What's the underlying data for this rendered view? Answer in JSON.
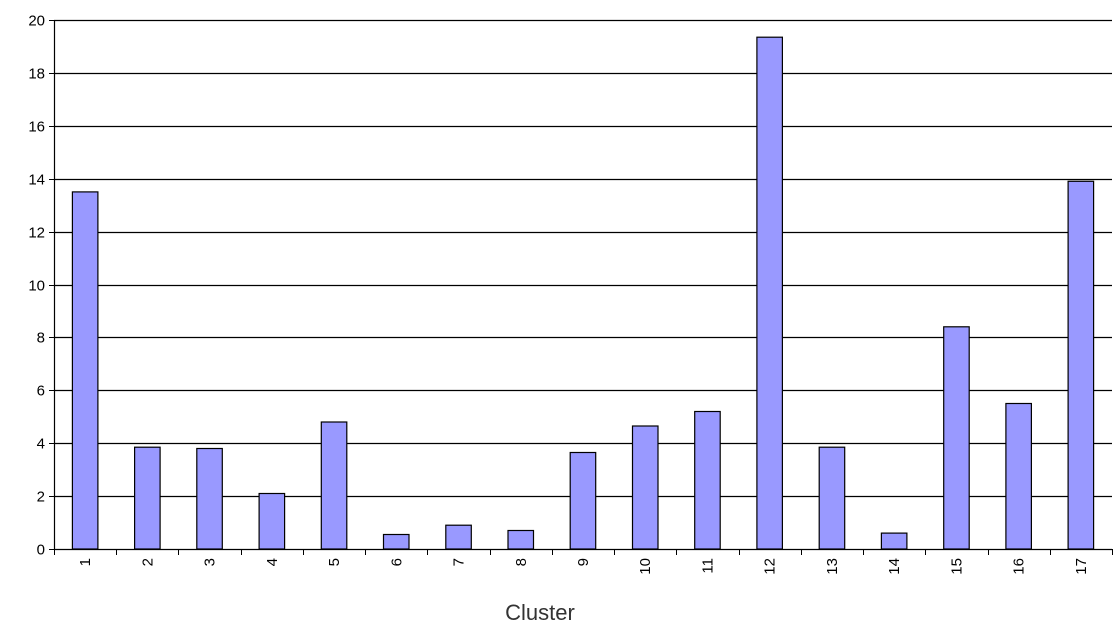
{
  "chart_data": {
    "type": "bar",
    "title": "",
    "xlabel": "Cluster",
    "ylabel": "",
    "ylim": [
      0,
      20
    ],
    "y_ticks": [
      "0",
      "2",
      "4",
      "6",
      "8",
      "10",
      "12",
      "14",
      "16",
      "18",
      "20"
    ],
    "categories": [
      "1",
      "2",
      "3",
      "4",
      "5",
      "6",
      "7",
      "8",
      "9",
      "10",
      "11",
      "12",
      "13",
      "14",
      "15",
      "16",
      "17"
    ],
    "values": [
      13.5,
      3.85,
      3.8,
      2.1,
      4.8,
      0.55,
      0.9,
      0.7,
      3.65,
      4.65,
      5.2,
      19.35,
      3.85,
      0.6,
      8.4,
      5.5,
      13.9
    ],
    "grid": true,
    "legend": "none",
    "colors": {
      "bar_fill": "#9999ff",
      "bar_stroke": "#000000",
      "grid": "#000000",
      "axis": "#000000"
    }
  }
}
